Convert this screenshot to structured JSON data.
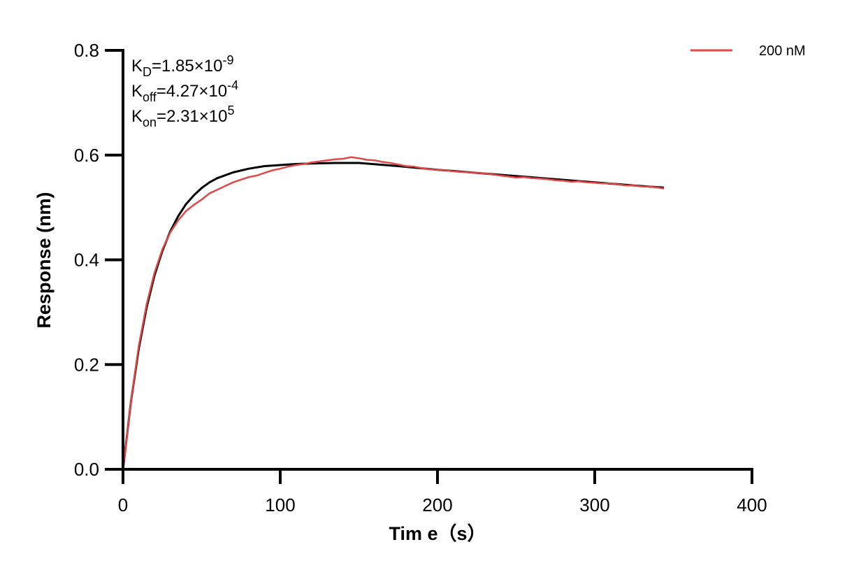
{
  "chart_data": {
    "type": "line",
    "xlabel": "Tim e（s）",
    "ylabel": "Response (nm)",
    "xlim": [
      0,
      400
    ],
    "ylim": [
      0,
      0.8
    ],
    "xticks": [
      "0",
      "100",
      "200",
      "300",
      "400"
    ],
    "yticks": [
      "0.0",
      "0.2",
      "0.4",
      "0.6",
      "0.8"
    ],
    "grid": false,
    "legend_position": "top-right",
    "annotations": [
      {
        "base": "K",
        "sub": "D",
        "mid": "=1.85×10",
        "sup": "-9"
      },
      {
        "base": "K",
        "sub": "off",
        "mid": "=4.27×10",
        "sup": "-4"
      },
      {
        "base": "K",
        "sub": "on",
        "mid": "=2.31×10",
        "sup": "5"
      }
    ],
    "series": [
      {
        "name": "200 nM",
        "color": "#e04848",
        "x": [
          0,
          5,
          10,
          15,
          20,
          25,
          30,
          35,
          40,
          45,
          50,
          55,
          60,
          65,
          70,
          75,
          80,
          85,
          90,
          95,
          100,
          105,
          110,
          115,
          120,
          125,
          130,
          135,
          140,
          145,
          150,
          155,
          160,
          165,
          170,
          175,
          180,
          185,
          190,
          195,
          200,
          205,
          210,
          215,
          220,
          225,
          230,
          235,
          240,
          245,
          250,
          255,
          260,
          265,
          270,
          275,
          280,
          285,
          290,
          295,
          300,
          305,
          310,
          315,
          320,
          325,
          330,
          335,
          340,
          344
        ],
        "y": [
          0,
          0.13,
          0.235,
          0.315,
          0.375,
          0.42,
          0.452,
          0.475,
          0.493,
          0.505,
          0.515,
          0.527,
          0.534,
          0.541,
          0.548,
          0.553,
          0.558,
          0.561,
          0.566,
          0.571,
          0.574,
          0.578,
          0.581,
          0.583,
          0.586,
          0.588,
          0.59,
          0.592,
          0.593,
          0.596,
          0.594,
          0.591,
          0.59,
          0.587,
          0.585,
          0.582,
          0.579,
          0.578,
          0.575,
          0.573,
          0.572,
          0.571,
          0.569,
          0.568,
          0.567,
          0.566,
          0.565,
          0.563,
          0.561,
          0.559,
          0.557,
          0.558,
          0.556,
          0.555,
          0.554,
          0.552,
          0.551,
          0.549,
          0.55,
          0.548,
          0.547,
          0.546,
          0.546,
          0.544,
          0.542,
          0.542,
          0.54,
          0.54,
          0.538,
          0.536
        ]
      },
      {
        "color": "#000000",
        "x": [
          0,
          5,
          10,
          15,
          20,
          25,
          30,
          35,
          40,
          45,
          50,
          55,
          60,
          70,
          80,
          90,
          100,
          110,
          120,
          135,
          150,
          175,
          200,
          225,
          250,
          275,
          300,
          325,
          344
        ],
        "y": [
          0,
          0.129,
          0.23,
          0.309,
          0.37,
          0.417,
          0.454,
          0.483,
          0.506,
          0.523,
          0.537,
          0.548,
          0.556,
          0.567,
          0.574,
          0.579,
          0.581,
          0.583,
          0.584,
          0.585,
          0.585,
          0.579,
          0.572,
          0.566,
          0.56,
          0.554,
          0.548,
          0.542,
          0.538
        ]
      }
    ]
  }
}
